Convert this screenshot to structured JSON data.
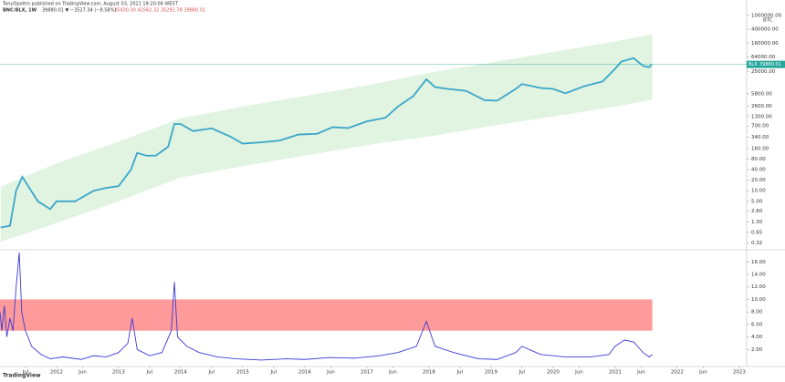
{
  "header": {
    "publisher": "TonyOpoltro published on TradingView.com, August 03, 2021 19:20:04 WEST",
    "symbol": "BNC:BLX, 1W",
    "quote": "39880.01 ▼ −3527.34 (−8.58%)",
    "ohlc": "35430.30  42562.32  35292.78  39880.01",
    "logo": "TradingView"
  },
  "chart_data": [
    {
      "type": "line",
      "log_scale": true,
      "currency": "BTC",
      "last_value": 39880.01,
      "last_tag": "BLX",
      "xlim": [
        2011.09,
        2023.12
      ],
      "ylim": [
        0.22,
        1500000
      ],
      "band_color": "#d9f0da",
      "band": {
        "x": [
          2011.1,
          2012,
          2013,
          2014,
          2015,
          2016,
          2017,
          2018,
          2019,
          2020,
          2021,
          2021.6
        ],
        "upper": [
          13,
          60,
          250,
          1165,
          2500,
          5000,
          10000,
          23000,
          45000,
          90000,
          180000,
          290000
        ],
        "lower": [
          0.35,
          1.2,
          5,
          24,
          50,
          100,
          200,
          350,
          700,
          1300,
          2500,
          3900
        ]
      },
      "yticks": [
        {
          "value": 0.32,
          "label": "0.32"
        },
        {
          "value": 0.65,
          "label": "0.65"
        },
        {
          "value": 1.3,
          "label": "1.30"
        },
        {
          "value": 2.6,
          "label": "2.60"
        },
        {
          "value": 5,
          "label": "5.00"
        },
        {
          "value": 10,
          "label": "10.00"
        },
        {
          "value": 20,
          "label": "20.00"
        },
        {
          "value": 40,
          "label": "40.00"
        },
        {
          "value": 80,
          "label": "80.00"
        },
        {
          "value": 160,
          "label": "160.00"
        },
        {
          "value": 340,
          "label": "340.00"
        },
        {
          "value": 700,
          "label": "700.00"
        },
        {
          "value": 1300,
          "label": "1300.00"
        },
        {
          "value": 2600,
          "label": "2600.00"
        },
        {
          "value": 5800,
          "label": "5800.00"
        },
        {
          "value": 25000,
          "label": "25000.00"
        },
        {
          "value": 64000,
          "label": "64000.00"
        },
        {
          "value": 160000,
          "label": "160000.00"
        },
        {
          "value": 400000,
          "label": "400000.00"
        },
        {
          "value": 1000000,
          "label": "1000000.00"
        }
      ],
      "series": [
        {
          "color": "#3aa7c9",
          "x": [
            2011.1,
            2011.25,
            2011.35,
            2011.45,
            2011.55,
            2011.7,
            2011.9,
            2012.0,
            2012.3,
            2012.6,
            2012.8,
            2013.0,
            2013.2,
            2013.3,
            2013.45,
            2013.6,
            2013.8,
            2013.9,
            2014.0,
            2014.2,
            2014.5,
            2014.8,
            2015.0,
            2015.3,
            2015.6,
            2015.9,
            2016.2,
            2016.45,
            2016.7,
            2017.0,
            2017.3,
            2017.5,
            2017.75,
            2017.96,
            2018.1,
            2018.3,
            2018.6,
            2018.9,
            2019.1,
            2019.4,
            2019.5,
            2019.8,
            2020.0,
            2020.2,
            2020.5,
            2020.8,
            2021.0,
            2021.1,
            2021.3,
            2021.45,
            2021.55,
            2021.59
          ],
          "values": [
            0.9,
            1.0,
            10,
            25,
            13,
            5,
            3,
            5,
            5,
            10,
            12,
            13.5,
            40,
            120,
            100,
            100,
            180,
            800,
            800,
            500,
            600,
            350,
            220,
            240,
            270,
            400,
            420,
            650,
            610,
            950,
            1200,
            2500,
            5000,
            15000,
            9000,
            8000,
            7000,
            3800,
            3700,
            8000,
            11000,
            8500,
            8000,
            6000,
            9500,
            13000,
            30000,
            48000,
            60000,
            36000,
            33000,
            39880.01
          ]
        }
      ]
    },
    {
      "type": "line",
      "xlim": [
        2011.09,
        2023.12
      ],
      "ylim": [
        0,
        17.5
      ],
      "zone": [
        5,
        10
      ],
      "zone_color": "#ff9a9a",
      "yticks": [
        {
          "value": 2,
          "label": "2.00"
        },
        {
          "value": 4,
          "label": "4.00"
        },
        {
          "value": 6,
          "label": "6.00"
        },
        {
          "value": 8,
          "label": "8.00"
        },
        {
          "value": 10,
          "label": "10.00"
        },
        {
          "value": 12,
          "label": "12.00"
        },
        {
          "value": 14,
          "label": "14.00"
        },
        {
          "value": 16,
          "label": "16.00"
        }
      ],
      "xticks": [
        {
          "value": 2011.5,
          "label": "Jul"
        },
        {
          "value": 2012,
          "label": "2012"
        },
        {
          "value": 2012.42,
          "label": "Jun"
        },
        {
          "value": 2013,
          "label": "2013"
        },
        {
          "value": 2013.5,
          "label": "Jul"
        },
        {
          "value": 2014,
          "label": "2014"
        },
        {
          "value": 2014.5,
          "label": "Jul"
        },
        {
          "value": 2015,
          "label": "2015"
        },
        {
          "value": 2015.5,
          "label": "Jul"
        },
        {
          "value": 2016,
          "label": "2016"
        },
        {
          "value": 2016.42,
          "label": "Jun"
        },
        {
          "value": 2017,
          "label": "2017"
        },
        {
          "value": 2017.42,
          "label": "Jun"
        },
        {
          "value": 2018,
          "label": "2018"
        },
        {
          "value": 2018.5,
          "label": "Jul"
        },
        {
          "value": 2019,
          "label": "2019"
        },
        {
          "value": 2019.5,
          "label": "Jul"
        },
        {
          "value": 2020,
          "label": "2020"
        },
        {
          "value": 2020.42,
          "label": "Jun"
        },
        {
          "value": 2021,
          "label": "2021"
        },
        {
          "value": 2021.42,
          "label": "Jun"
        },
        {
          "value": 2022,
          "label": "2022"
        },
        {
          "value": 2022.42,
          "label": "Jun"
        },
        {
          "value": 2023,
          "label": "2023"
        }
      ],
      "series": [
        {
          "color": "#3b3bd6",
          "x": [
            2011.09,
            2011.12,
            2011.16,
            2011.2,
            2011.25,
            2011.3,
            2011.35,
            2011.4,
            2011.44,
            2011.5,
            2011.6,
            2011.75,
            2011.9,
            2012.1,
            2012.4,
            2012.6,
            2012.8,
            2013.0,
            2013.15,
            2013.22,
            2013.3,
            2013.5,
            2013.7,
            2013.85,
            2013.9,
            2013.95,
            2014.1,
            2014.3,
            2014.6,
            2014.9,
            2015.3,
            2015.7,
            2016.0,
            2016.4,
            2016.8,
            2017.2,
            2017.5,
            2017.8,
            2017.96,
            2018.1,
            2018.4,
            2018.8,
            2019.1,
            2019.4,
            2019.5,
            2019.8,
            2020.2,
            2020.6,
            2020.9,
            2021.0,
            2021.15,
            2021.3,
            2021.45,
            2021.55,
            2021.6
          ],
          "values": [
            8,
            5,
            9,
            4,
            7,
            5,
            12,
            17.5,
            8,
            5,
            2.5,
            1.2,
            0.5,
            0.8,
            0.4,
            1.0,
            0.8,
            1.5,
            3,
            7,
            2,
            1,
            1.5,
            5,
            12.8,
            4,
            2.5,
            1.5,
            0.8,
            0.5,
            0.3,
            0.5,
            0.4,
            0.7,
            0.6,
            1.0,
            1.5,
            2.5,
            6.5,
            2.5,
            1.5,
            0.5,
            0.4,
            1.5,
            2.5,
            1.2,
            0.8,
            0.8,
            1.2,
            2.5,
            3.5,
            3.2,
            1.5,
            0.8,
            1.2
          ]
        }
      ]
    }
  ]
}
